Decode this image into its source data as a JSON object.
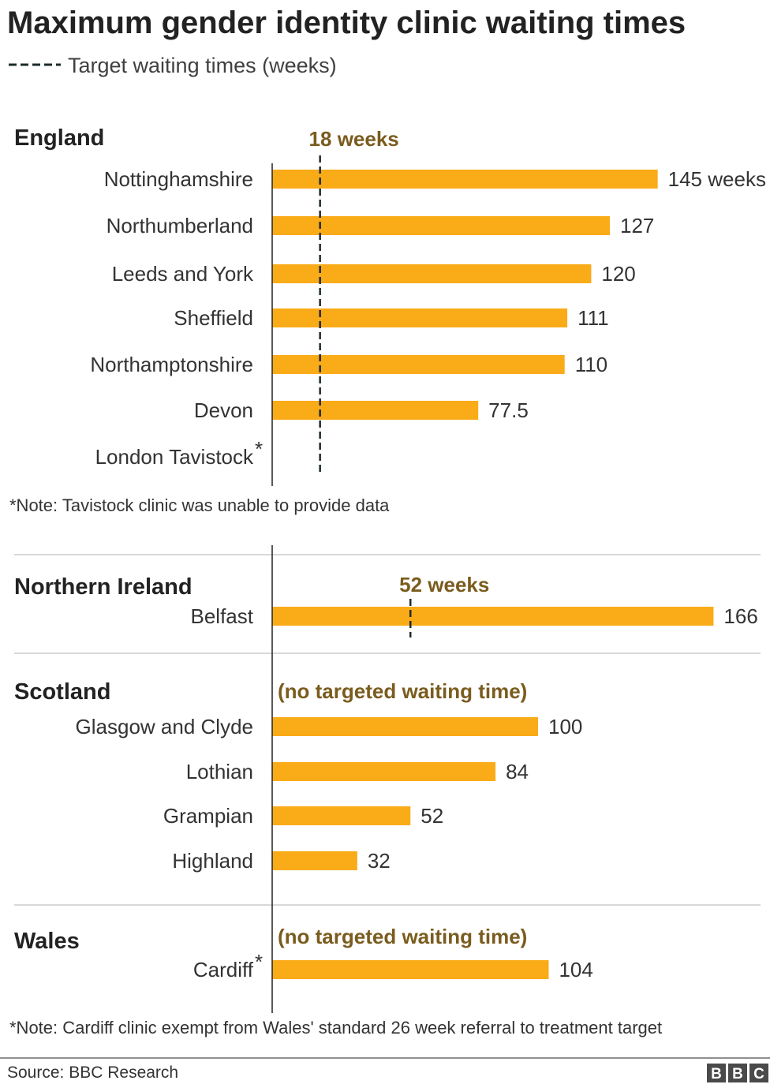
{
  "title": "Maximum gender identity clinic waiting times",
  "legend": {
    "label": "Target waiting times (weeks)"
  },
  "colors": {
    "bar": "#FAAB18",
    "target_text": "#7a5c1e",
    "target_line": "#1c2b2b",
    "axis": "#222222",
    "separator": "#cccccc"
  },
  "notes": {
    "england": "*Note: Tavistock clinic was unable to provide data",
    "wales": "*Note: Cardiff clinic exempt from Wales' standard 26 week referral to treatment target"
  },
  "source": "Source: BBC Research",
  "logo": {
    "letters": [
      "B",
      "B",
      "C"
    ]
  },
  "chart_data": {
    "type": "bar",
    "orientation": "horizontal",
    "title": "Maximum gender identity clinic waiting times",
    "unit": "weeks",
    "xlim": [
      0,
      170
    ],
    "grid": false,
    "legend": {
      "entries": [
        "Target waiting times (weeks)"
      ],
      "placement": "top-left"
    },
    "groups": [
      {
        "region": "England",
        "target_label": "18 weeks",
        "target": 18,
        "categories": [
          "Nottinghamshire",
          "Northumberland",
          "Leeds and York",
          "Sheffield",
          "Northamptonshire",
          "Devon",
          "London Tavistock"
        ],
        "asterisk": [
          false,
          false,
          false,
          false,
          false,
          false,
          true
        ],
        "values": [
          145,
          127,
          120,
          111,
          110,
          77.5,
          null
        ],
        "value_labels": [
          "145 weeks",
          "127",
          "120",
          "111",
          "110",
          "77.5",
          ""
        ]
      },
      {
        "region": "Northern Ireland",
        "target_label": "52 weeks",
        "target": 52,
        "categories": [
          "Belfast"
        ],
        "asterisk": [
          false
        ],
        "values": [
          166
        ],
        "value_labels": [
          "166"
        ]
      },
      {
        "region": "Scotland",
        "target_label": "(no targeted waiting time)",
        "target": null,
        "categories": [
          "Glasgow and Clyde",
          "Lothian",
          "Grampian",
          "Highland"
        ],
        "asterisk": [
          false,
          false,
          false,
          false
        ],
        "values": [
          100,
          84,
          52,
          32
        ],
        "value_labels": [
          "100",
          "84",
          "52",
          "32"
        ]
      },
      {
        "region": "Wales",
        "target_label": "(no targeted waiting time)",
        "target": null,
        "categories": [
          "Cardiff"
        ],
        "asterisk": [
          true
        ],
        "values": [
          104
        ],
        "value_labels": [
          "104"
        ]
      }
    ]
  }
}
